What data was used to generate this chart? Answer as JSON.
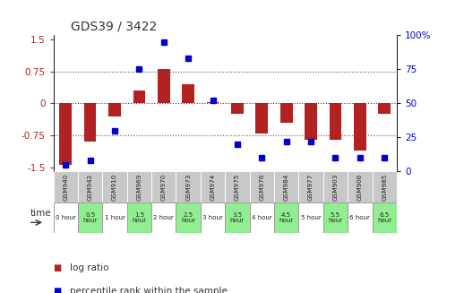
{
  "title": "GDS39 / 3422",
  "samples": [
    "GSM940",
    "GSM942",
    "GSM910",
    "GSM969",
    "GSM970",
    "GSM973",
    "GSM974",
    "GSM975",
    "GSM976",
    "GSM984",
    "GSM977",
    "GSM903",
    "GSM906",
    "GSM985"
  ],
  "time_labels": [
    "0 hour",
    "0.5\nhour",
    "1 hour",
    "1.5\nhour",
    "2 hour",
    "2.5\nhour",
    "3 hour",
    "3.5\nhour",
    "4 hour",
    "4.5\nhour",
    "5 hour",
    "5.5\nhour",
    "6 hour",
    "6.5\nhour"
  ],
  "log_ratio": [
    -1.45,
    -0.9,
    -0.3,
    0.3,
    0.8,
    0.45,
    0.02,
    -0.25,
    -0.7,
    -0.45,
    -0.85,
    -0.85,
    -1.1,
    -0.25
  ],
  "percentile": [
    5,
    8,
    30,
    75,
    95,
    83,
    52,
    20,
    10,
    22,
    22,
    10,
    10,
    10
  ],
  "ylim": [
    -1.6,
    1.6
  ],
  "yticks_left": [
    -1.5,
    -0.75,
    0,
    0.75,
    1.5
  ],
  "yticks_right": [
    0,
    25,
    50,
    75,
    100
  ],
  "bar_color": "#B22222",
  "dot_color": "#0000CD",
  "zero_line_color": "#CC0000",
  "dotted_line_color": "#555555",
  "bg_color": "#FFFFFF",
  "sample_cell_color": "#C8C8C8",
  "time_cell_color_light": "#FFFFFF",
  "time_cell_color_dark": "#90EE90",
  "legend_red_label": "log ratio",
  "legend_blue_label": "percentile rank within the sample"
}
